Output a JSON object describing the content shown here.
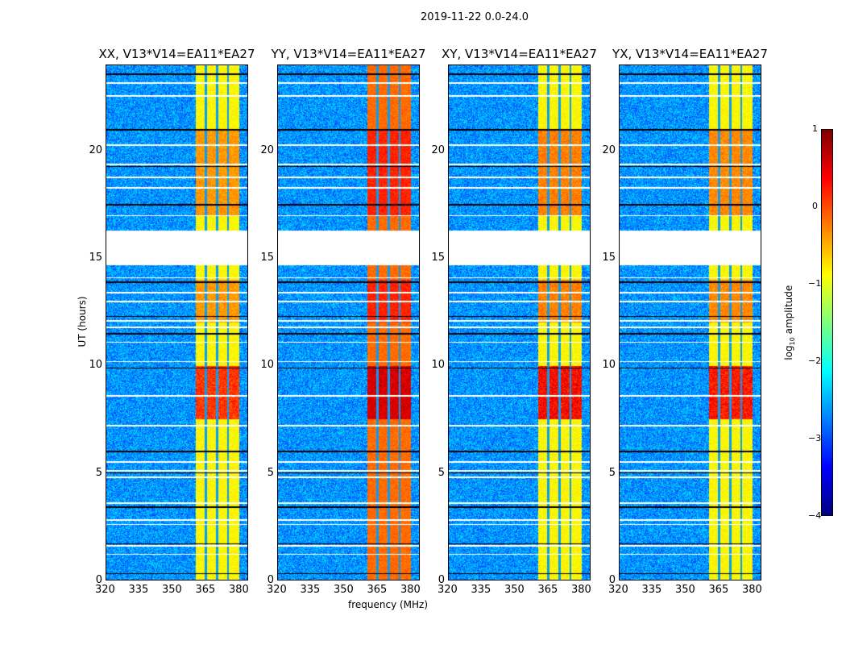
{
  "chart_data": {
    "type": "heatmap",
    "title": "2019-11-22 0.0-24.0",
    "xlabel": "frequency (MHz)",
    "ylabel": "UT (hours)",
    "xlim": [
      320,
      384
    ],
    "ylim": [
      0,
      24
    ],
    "xticks": [
      "320",
      "335",
      "350",
      "365",
      "380"
    ],
    "xtick_values": [
      320,
      335,
      350,
      365,
      380
    ],
    "yticks": [
      "0",
      "5",
      "10",
      "15",
      "20"
    ],
    "ytick_values": [
      0,
      5,
      10,
      15,
      20
    ],
    "panels": [
      {
        "title": "XX, V13*V14=EA11*EA27",
        "band_level": -1.0,
        "peak_level": 0.2
      },
      {
        "title": "YY, V13*V14=EA11*EA27",
        "band_level": -0.3,
        "peak_level": 0.6
      },
      {
        "title": "XY, V13*V14=EA11*EA27",
        "band_level": -1.0,
        "peak_level": 0.5
      },
      {
        "title": "YX, V13*V14=EA11*EA27",
        "band_level": -1.0,
        "peak_level": 0.4
      }
    ],
    "background_level": -2.8,
    "rfi_band_mhz": [
      360.4,
      380
    ],
    "rfi_channel_gaps_mhz": [
      365,
      370,
      375
    ],
    "flagged_time_range_hours": [
      14.7,
      16.3
    ],
    "flagged_rows_hours": [
      0.3,
      1.2,
      1.6,
      1.7,
      2.6,
      2.8,
      3.4,
      3.6,
      4.8,
      5.0,
      5.1,
      5.5,
      6.0,
      7.2,
      8.6,
      9.9,
      10.2,
      11.1,
      11.5,
      11.8,
      12.1,
      12.3,
      13.0,
      13.4,
      13.9,
      14.1,
      17.0,
      17.5,
      18.3,
      18.8,
      19.3,
      19.4,
      20.3,
      21.0,
      22.6,
      23.2,
      23.6
    ],
    "colorbar": {
      "label": "log10 amplitude",
      "label_main": "log",
      "label_sub": "10",
      "label_rest": " amplitude",
      "range": [
        -4,
        1
      ],
      "ticks": [
        "1",
        "0",
        "−1",
        "−2",
        "−3",
        "−4"
      ],
      "colormap": "jet"
    }
  }
}
